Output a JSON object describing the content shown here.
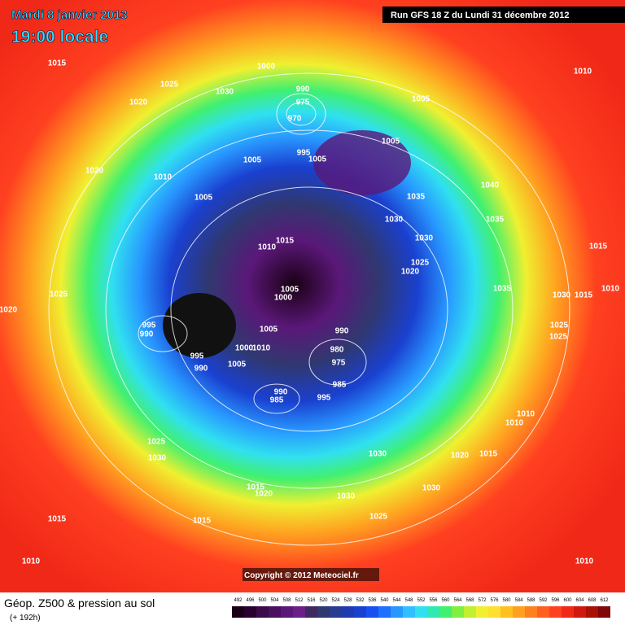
{
  "header": {
    "date": "Mardi 8 janvier 2013",
    "time": "19:00 locale",
    "run": "Run GFS 18 Z du Lundi 31 décembre 2012"
  },
  "copyright": "Copyright © 2012 Meteociel.fr",
  "legend": {
    "title": "Géop. Z500 & pression au sol",
    "subtitle": "(+ 192h)",
    "scale": [
      {
        "value": 492,
        "color": "#1a0014"
      },
      {
        "value": 496,
        "color": "#2a0030"
      },
      {
        "value": 500,
        "color": "#3c0a4a"
      },
      {
        "value": 504,
        "color": "#4a1060"
      },
      {
        "value": 508,
        "color": "#5a1878"
      },
      {
        "value": 512,
        "color": "#6a2088"
      },
      {
        "value": 516,
        "color": "#402860"
      },
      {
        "value": 520,
        "color": "#303870"
      },
      {
        "value": 524,
        "color": "#283c90"
      },
      {
        "value": 528,
        "color": "#1e3cb0"
      },
      {
        "value": 532,
        "color": "#1a40d0"
      },
      {
        "value": 536,
        "color": "#1850f0"
      },
      {
        "value": 540,
        "color": "#2070ff"
      },
      {
        "value": 544,
        "color": "#2898ff"
      },
      {
        "value": 548,
        "color": "#30c0ff"
      },
      {
        "value": 552,
        "color": "#30e0f0"
      },
      {
        "value": 556,
        "color": "#30e8b0"
      },
      {
        "value": 560,
        "color": "#40f070"
      },
      {
        "value": 564,
        "color": "#80f040"
      },
      {
        "value": 568,
        "color": "#c0f030"
      },
      {
        "value": 572,
        "color": "#f0f030"
      },
      {
        "value": 576,
        "color": "#ffe030"
      },
      {
        "value": 580,
        "color": "#ffc020"
      },
      {
        "value": 584,
        "color": "#ffa020"
      },
      {
        "value": 588,
        "color": "#ff8020"
      },
      {
        "value": 592,
        "color": "#ff6020"
      },
      {
        "value": 596,
        "color": "#ff4020"
      },
      {
        "value": 600,
        "color": "#f02818"
      },
      {
        "value": 604,
        "color": "#d01810"
      },
      {
        "value": 608,
        "color": "#a81008"
      },
      {
        "value": 612,
        "color": "#800808"
      }
    ]
  },
  "isobars": [
    "1015",
    "1025",
    "1030",
    "1000",
    "1020",
    "990",
    "975",
    "970",
    "1005",
    "1005",
    "995",
    "1005",
    "1020",
    "1010",
    "1005",
    "1005",
    "1040",
    "1035",
    "1030",
    "1030",
    "1035",
    "1015",
    "1010",
    "1025",
    "1020",
    "1015",
    "1035",
    "1030",
    "1015",
    "1010",
    "1025",
    "1020",
    "1005",
    "1000",
    "995",
    "990",
    "1005",
    "990",
    "1000",
    "1010",
    "995",
    "980",
    "990",
    "975",
    "1005",
    "985",
    "990",
    "985",
    "995",
    "1025",
    "1025",
    "1010",
    "1010",
    "1025",
    "1030",
    "1030",
    "1020",
    "1015",
    "1015",
    "1020",
    "1030",
    "1030",
    "1025",
    "1015",
    "1015",
    "1010",
    "1010",
    "1010"
  ]
}
